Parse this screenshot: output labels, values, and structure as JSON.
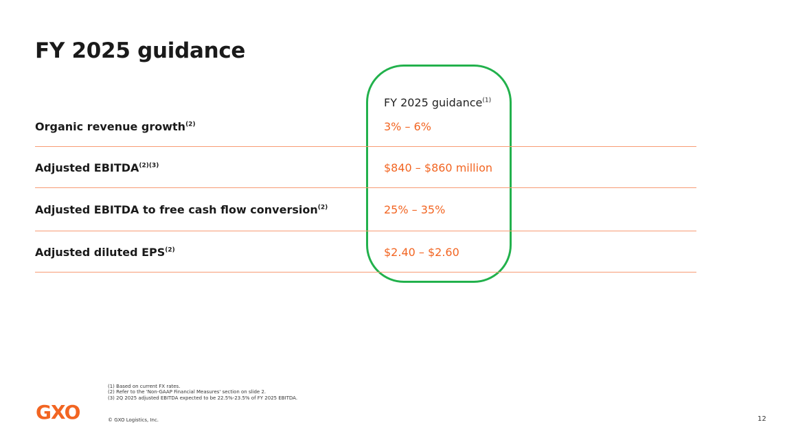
{
  "title": "FY 2025 guidance",
  "column_header": {
    "label": "FY 2025 guidance",
    "note": "(1)"
  },
  "rows": [
    {
      "label": "Organic revenue growth",
      "note": "(2)",
      "value": "3% – 6%"
    },
    {
      "label": "Adjusted EBITDA",
      "note": "(2)(3)",
      "value": "$840 – $860 million"
    },
    {
      "label": "Adjusted EBITDA to free cash flow conversion",
      "note": "(2)",
      "value": "25% – 35%"
    },
    {
      "label": "Adjusted diluted EPS",
      "note": "(2)",
      "value": "$2.40 – $2.60"
    }
  ],
  "footnotes": [
    "(1) Based on current FX rates.",
    "(2) Refer to the 'Non-GAAP Financial Measures' section on slide 2.",
    "(3) 2Q 2025 adjusted EBITDA expected to be 22.5%-23.5% of FY 2025 EBITDA."
  ],
  "copyright": "© GXO Logistics, Inc.",
  "logo_text": "GXO",
  "page_number": "12",
  "colors": {
    "accent": "#f26522",
    "highlight": "#22b14c",
    "divider": "#f79a73"
  }
}
